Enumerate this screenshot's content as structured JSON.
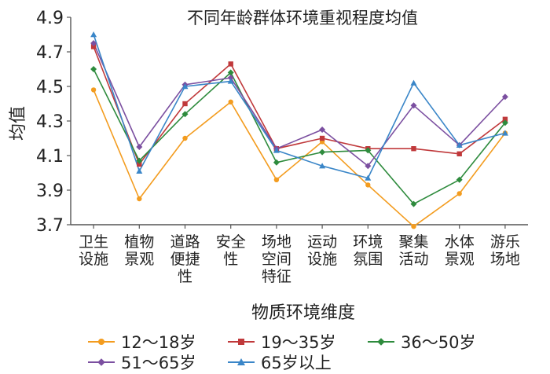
{
  "chart_data": {
    "type": "line",
    "title": "不同年龄群体环境重视程度均值",
    "xlabel": "物质环境维度",
    "ylabel": "均值",
    "ylim": [
      3.7,
      4.9
    ],
    "yticks": [
      "3.7",
      "3.9",
      "4.1",
      "4.3",
      "4.5",
      "4.7",
      "4.9"
    ],
    "categories": [
      [
        "卫生",
        "设施"
      ],
      [
        "植物",
        "景观"
      ],
      [
        "道路",
        "便捷",
        "性"
      ],
      [
        "安全",
        "性"
      ],
      [
        "场地",
        "空间",
        "特征"
      ],
      [
        "运动",
        "设施"
      ],
      [
        "环境",
        "氛围"
      ],
      [
        "聚集",
        "活动"
      ],
      [
        "水体",
        "景观"
      ],
      [
        "游乐",
        "场地"
      ]
    ],
    "grid": false,
    "legend_position": "bottom",
    "series": [
      {
        "name": "12～18岁",
        "color": "#f39c1f",
        "marker": "circle",
        "values": [
          4.48,
          3.85,
          4.2,
          4.41,
          3.96,
          4.18,
          3.93,
          3.69,
          3.88,
          4.23
        ]
      },
      {
        "name": "19～35岁",
        "color": "#c0393b",
        "marker": "square",
        "values": [
          4.73,
          4.05,
          4.4,
          4.63,
          4.14,
          4.2,
          4.14,
          4.14,
          4.11,
          4.31
        ]
      },
      {
        "name": "36～50岁",
        "color": "#2e8b3d",
        "marker": "diamond",
        "values": [
          4.6,
          4.07,
          4.34,
          4.58,
          4.06,
          4.12,
          4.13,
          3.82,
          3.96,
          4.29
        ]
      },
      {
        "name": "51～65岁",
        "color": "#7b4fa0",
        "marker": "diamond",
        "values": [
          4.75,
          4.15,
          4.51,
          4.55,
          4.14,
          4.25,
          4.04,
          4.39,
          4.16,
          4.44
        ]
      },
      {
        "name": "65岁以上",
        "color": "#3a86c8",
        "marker": "triangle",
        "values": [
          4.8,
          4.01,
          4.5,
          4.53,
          4.13,
          4.04,
          3.97,
          4.52,
          4.16,
          4.23
        ]
      }
    ]
  }
}
